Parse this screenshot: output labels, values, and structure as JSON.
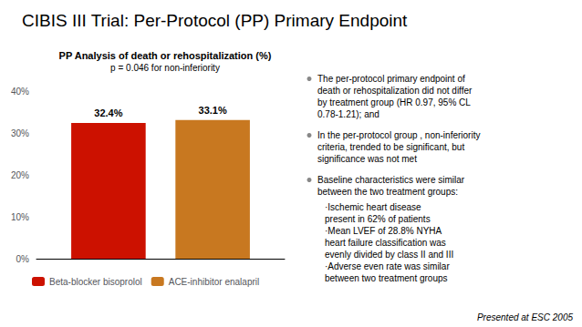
{
  "chart_data": {
    "type": "bar",
    "title": "CIBIS III Trial: Per-Protocol (PP) Primary Endpoint",
    "subtitle": "PP Analysis of death or rehospitalization (%)",
    "annotations": [
      "p = 0.046 for non-inferiority",
      "The per-protocol primary endpoint of\ndeath or rehospitalization did not differ\nby treatment group (HR 0.97, 95% CL\n0.78-1.21); and",
      "In the per-protocol group , non-inferiority\ncriteria, trended to be significant, but\nsignificance was not met",
      "Baseline characteristics were similar\nbetween the two treatment groups:",
      "·Ischemic heart disease\npresent in 62% of patients\n·Mean LVEF of 28.8% NYHA\nheart failure classification was\nevenly divided by class II and III\n·Adverse even rate was similar\nbetween two treatment groups",
      "Presented at ESC 2005"
    ],
    "categories": [
      null
    ],
    "series": [
      {
        "name": "Beta-blocker bisoprolol",
        "color": "#cc1100",
        "values": [
          32.4
        ],
        "value_labels": [
          "32.4%"
        ]
      },
      {
        "name": "ACE-inhibitor enalapril",
        "color": "#c87820",
        "values": [
          33.1
        ],
        "value_labels": [
          "33.1%"
        ]
      }
    ],
    "ylim": [
      0,
      40
    ],
    "yticks": [
      {
        "value": 0,
        "label": "0%"
      },
      {
        "value": 10,
        "label": "10%"
      },
      {
        "value": 20,
        "label": "20%"
      },
      {
        "value": 30,
        "label": "30%"
      },
      {
        "value": 40,
        "label": "40%"
      }
    ],
    "data_labels": true,
    "tick_labels": "y",
    "grid": false,
    "legend": "bottom"
  }
}
